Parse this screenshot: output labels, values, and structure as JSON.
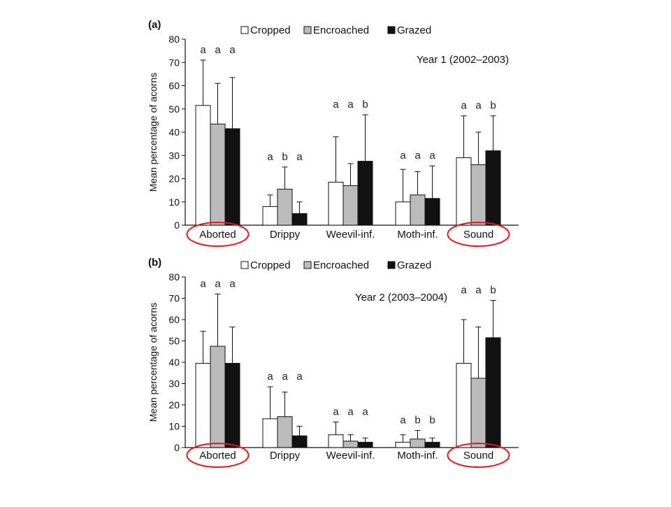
{
  "chart_data": [
    {
      "type": "bar",
      "panel_label": "(a)",
      "annotation": "Year 1 (2002–2003)",
      "ylabel": "Mean percentage of acorns",
      "ylim": [
        0,
        80
      ],
      "yticks": [
        0,
        10,
        20,
        30,
        40,
        50,
        60,
        70,
        80
      ],
      "legend_position": "top",
      "categories": [
        "Aborted",
        "Drippy",
        "Weevil-inf.",
        "Moth-inf.",
        "Sound"
      ],
      "highlighted_categories": [
        "Aborted",
        "Sound"
      ],
      "series": [
        {
          "name": "Cropped",
          "color": "#ffffff",
          "values": [
            51.5,
            8,
            18.5,
            10,
            29
          ],
          "error_upper": [
            71,
            13,
            38,
            24,
            47
          ],
          "letters": [
            "a",
            "a",
            "a",
            "a",
            "a"
          ]
        },
        {
          "name": "Encroached",
          "color": "#bbbbbb",
          "values": [
            43.5,
            15.5,
            17,
            13,
            26
          ],
          "error_upper": [
            61,
            25,
            26.5,
            23,
            40
          ],
          "letters": [
            "a",
            "b",
            "a",
            "a",
            "a"
          ]
        },
        {
          "name": "Grazed",
          "color": "#111111",
          "values": [
            41.5,
            5,
            27.5,
            11.5,
            32
          ],
          "error_upper": [
            63.5,
            10,
            47.5,
            25.5,
            47
          ],
          "letters": [
            "a",
            "a",
            "b",
            "a",
            "b"
          ]
        }
      ]
    },
    {
      "type": "bar",
      "panel_label": "(b)",
      "annotation": "Year 2 (2003–2004)",
      "ylabel": "Mean percentage of acorns",
      "ylim": [
        0,
        80
      ],
      "yticks": [
        0,
        10,
        20,
        30,
        40,
        50,
        60,
        70,
        80
      ],
      "legend_position": "top",
      "categories": [
        "Aborted",
        "Drippy",
        "Weevil-inf.",
        "Moth-inf.",
        "Sound"
      ],
      "highlighted_categories": [
        "Aborted",
        "Sound"
      ],
      "series": [
        {
          "name": "Cropped",
          "color": "#ffffff",
          "values": [
            39.5,
            13.5,
            6,
            2.5,
            39.5
          ],
          "error_upper": [
            54.5,
            28.5,
            12,
            6,
            60
          ],
          "letters": [
            "a",
            "a",
            "a",
            "a",
            "a"
          ]
        },
        {
          "name": "Encroached",
          "color": "#bbbbbb",
          "values": [
            47.5,
            14.5,
            3,
            4,
            32.5
          ],
          "error_upper": [
            72,
            26,
            6,
            8,
            56.5
          ],
          "letters": [
            "a",
            "a",
            "a",
            "b",
            "a"
          ]
        },
        {
          "name": "Grazed",
          "color": "#111111",
          "values": [
            39.5,
            5.5,
            2.5,
            2.5,
            51.5
          ],
          "error_upper": [
            56.5,
            10,
            4.5,
            4.5,
            69
          ],
          "letters": [
            "a",
            "a",
            "a",
            "b",
            "b"
          ]
        }
      ]
    }
  ]
}
